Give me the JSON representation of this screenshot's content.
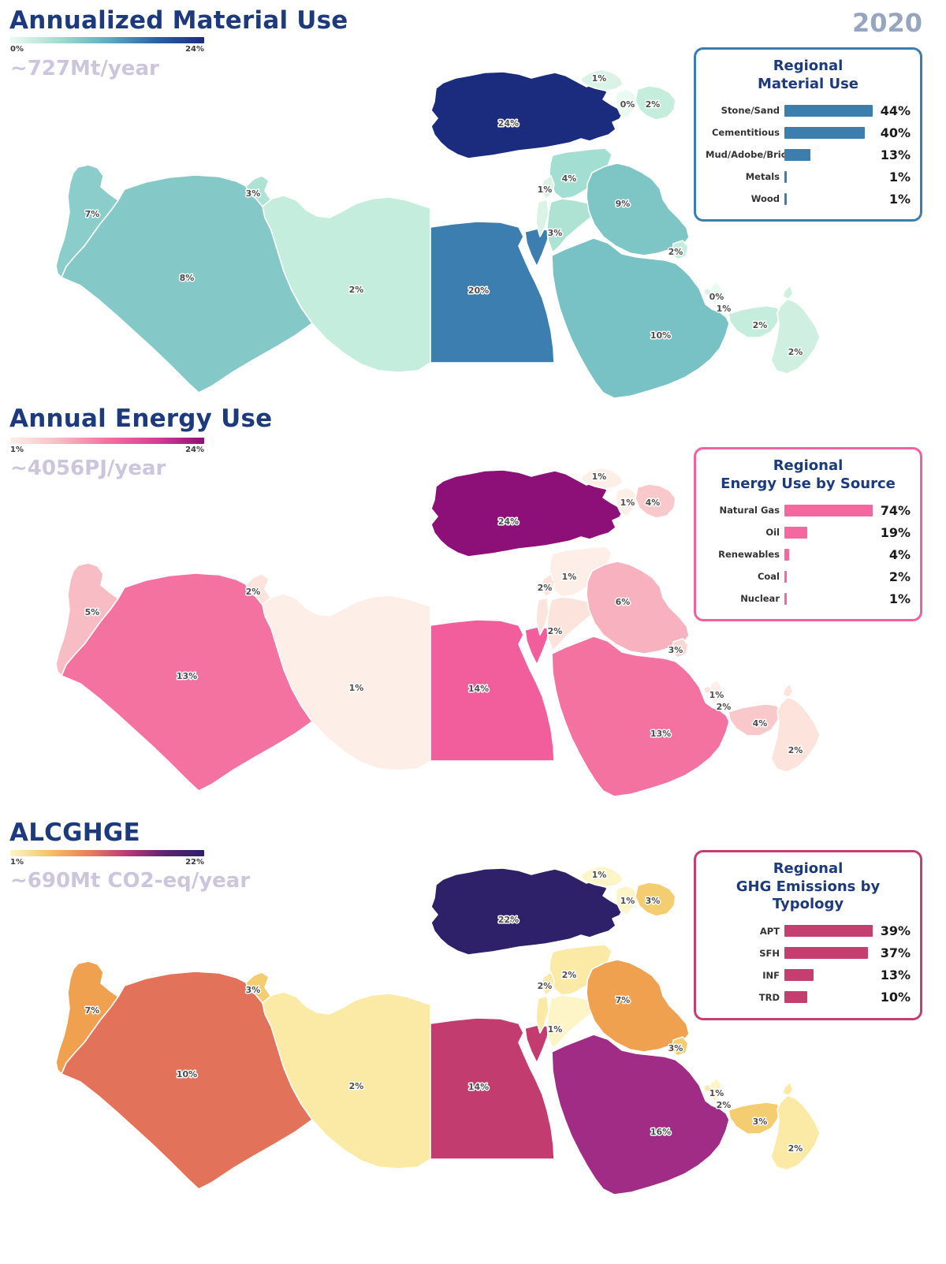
{
  "year": "2020",
  "sections": [
    {
      "title": "Annualized Material Use",
      "subtitle": "~727Mt/year",
      "scale": {
        "min": "0%",
        "max": "24%",
        "gradient": [
          "#ebfaf2",
          "#a5dcd0",
          "#5fadc2",
          "#2d62a3",
          "#1b2c7e"
        ]
      },
      "legend": {
        "title_line1": "Regional",
        "title_line2": "Material Use",
        "border_color": "#3c7eae",
        "bar_color": "#3c7eae",
        "rows": [
          {
            "label": "Stone/Sand",
            "value": "44%",
            "pct": 44
          },
          {
            "label": "Cementitious",
            "value": "40%",
            "pct": 40
          },
          {
            "label": "Mud/Adobe/Brick",
            "value": "13%",
            "pct": 13
          },
          {
            "label": "Metals",
            "value": "1%",
            "pct": 1
          },
          {
            "label": "Wood",
            "value": "1%",
            "pct": 1
          }
        ]
      },
      "map": {
        "countries": [
          {
            "id": "morocco",
            "value": "7%",
            "fill": "#8bcdca"
          },
          {
            "id": "algeria",
            "value": "8%",
            "fill": "#84c8c7"
          },
          {
            "id": "tunisia",
            "value": "3%",
            "fill": "#aee3d4"
          },
          {
            "id": "libya",
            "value": "2%",
            "fill": "#c5eddd"
          },
          {
            "id": "egypt",
            "value": "20%",
            "fill": "#3d7eb0"
          },
          {
            "id": "turkey",
            "value": "24%",
            "fill": "#1b2c7e"
          },
          {
            "id": "georgia",
            "value": "1%",
            "fill": "#d9f3e6"
          },
          {
            "id": "armenia",
            "value": "0%",
            "fill": "#e9faf0"
          },
          {
            "id": "azerbaijan",
            "value": "2%",
            "fill": "#c5eddd"
          },
          {
            "id": "syria",
            "value": "4%",
            "fill": "#a2ded1"
          },
          {
            "id": "lebanon",
            "value": "1%",
            "fill": "#d9f3e6"
          },
          {
            "id": "israel_strip",
            "value": "",
            "fill": "#d9f3e6"
          },
          {
            "id": "jordan",
            "value": "3%",
            "fill": "#aee3d4"
          },
          {
            "id": "iraq",
            "value": "9%",
            "fill": "#7ec5c6"
          },
          {
            "id": "kuwait",
            "value": "2%",
            "fill": "#c5eddd"
          },
          {
            "id": "saudi_arabia",
            "value": "10%",
            "fill": "#78c1c5"
          },
          {
            "id": "qatar",
            "value": "0%",
            "fill": "#e9faf0"
          },
          {
            "id": "bahrain",
            "value": "1%",
            "fill": "#d9f3e6"
          },
          {
            "id": "uae",
            "value": "2%",
            "fill": "#c5eddd"
          },
          {
            "id": "oman",
            "value": "2%",
            "fill": "#cfefe0"
          }
        ]
      }
    },
    {
      "title": "Annual Energy Use",
      "subtitle": "~4056PJ/year",
      "scale": {
        "min": "1%",
        "max": "24%",
        "gradient": [
          "#fdf0e8",
          "#f9bcc5",
          "#f4719f",
          "#d63f96",
          "#8c1078"
        ]
      },
      "legend": {
        "title_line1": "Regional",
        "title_line2": "Energy Use by Source",
        "border_color": "#f0619e",
        "bar_color": "#f4679f",
        "rows": [
          {
            "label": "Natural Gas",
            "value": "74%",
            "pct": 74
          },
          {
            "label": "Oil",
            "value": "19%",
            "pct": 19
          },
          {
            "label": "Renewables",
            "value": "4%",
            "pct": 4
          },
          {
            "label": "Coal",
            "value": "2%",
            "pct": 2
          },
          {
            "label": "Nuclear",
            "value": "1%",
            "pct": 1
          }
        ]
      },
      "map": {
        "countries": [
          {
            "id": "morocco",
            "value": "5%",
            "fill": "#f8bdc4"
          },
          {
            "id": "algeria",
            "value": "13%",
            "fill": "#f4729f"
          },
          {
            "id": "tunisia",
            "value": "2%",
            "fill": "#fce3dc"
          },
          {
            "id": "libya",
            "value": "1%",
            "fill": "#fdefe7"
          },
          {
            "id": "egypt",
            "value": "14%",
            "fill": "#f15e9b"
          },
          {
            "id": "turkey",
            "value": "24%",
            "fill": "#8c1078"
          },
          {
            "id": "georgia",
            "value": "1%",
            "fill": "#fdefe7"
          },
          {
            "id": "armenia",
            "value": "1%",
            "fill": "#fdefe7"
          },
          {
            "id": "azerbaijan",
            "value": "4%",
            "fill": "#f9c8cb"
          },
          {
            "id": "syria",
            "value": "1%",
            "fill": "#fdefe7"
          },
          {
            "id": "lebanon",
            "value": "2%",
            "fill": "#fce3dc"
          },
          {
            "id": "israel_strip",
            "value": "",
            "fill": "#fce3dc"
          },
          {
            "id": "jordan",
            "value": "2%",
            "fill": "#fce3dc"
          },
          {
            "id": "iraq",
            "value": "6%",
            "fill": "#f7b1bf"
          },
          {
            "id": "kuwait",
            "value": "3%",
            "fill": "#fbd5d3"
          },
          {
            "id": "saudi_arabia",
            "value": "13%",
            "fill": "#f4729f"
          },
          {
            "id": "qatar",
            "value": "1%",
            "fill": "#fdefe7"
          },
          {
            "id": "bahrain",
            "value": "2%",
            "fill": "#fce3dc"
          },
          {
            "id": "uae",
            "value": "4%",
            "fill": "#f9c8cb"
          },
          {
            "id": "oman",
            "value": "2%",
            "fill": "#fce3dc"
          }
        ]
      }
    },
    {
      "title": "ALCGHGE",
      "subtitle": "~690Mt CO2-eq/year",
      "scale": {
        "min": "1%",
        "max": "22%",
        "gradient": [
          "#fdf6c9",
          "#f5c268",
          "#e8815a",
          "#b93a77",
          "#5c2471",
          "#2e2069"
        ]
      },
      "legend": {
        "title_line1": "Regional",
        "title_line2": "GHG Emissions by Typology",
        "border_color": "#c43f6f",
        "bar_color": "#c43f6f",
        "rows": [
          {
            "label": "APT",
            "value": "39%",
            "pct": 39
          },
          {
            "label": "SFH",
            "value": "37%",
            "pct": 37
          },
          {
            "label": "INF",
            "value": "13%",
            "pct": 13
          },
          {
            "label": "TRD",
            "value": "10%",
            "pct": 10
          }
        ]
      },
      "map": {
        "countries": [
          {
            "id": "morocco",
            "value": "7%",
            "fill": "#f0a150"
          },
          {
            "id": "algeria",
            "value": "10%",
            "fill": "#e3725b"
          },
          {
            "id": "tunisia",
            "value": "3%",
            "fill": "#f4cd70"
          },
          {
            "id": "libya",
            "value": "2%",
            "fill": "#faeaa6"
          },
          {
            "id": "egypt",
            "value": "14%",
            "fill": "#c23c70"
          },
          {
            "id": "turkey",
            "value": "22%",
            "fill": "#2e2069"
          },
          {
            "id": "georgia",
            "value": "1%",
            "fill": "#fdf5c7"
          },
          {
            "id": "armenia",
            "value": "1%",
            "fill": "#fdf5c7"
          },
          {
            "id": "azerbaijan",
            "value": "3%",
            "fill": "#f4cd70"
          },
          {
            "id": "syria",
            "value": "2%",
            "fill": "#faeaa6"
          },
          {
            "id": "lebanon",
            "value": "2%",
            "fill": "#faeaa6"
          },
          {
            "id": "israel_strip",
            "value": "",
            "fill": "#faeaa6"
          },
          {
            "id": "jordan",
            "value": "1%",
            "fill": "#fdf5c7"
          },
          {
            "id": "iraq",
            "value": "7%",
            "fill": "#f0a150"
          },
          {
            "id": "kuwait",
            "value": "3%",
            "fill": "#f4cd70"
          },
          {
            "id": "saudi_arabia",
            "value": "16%",
            "fill": "#a02c86"
          },
          {
            "id": "qatar",
            "value": "1%",
            "fill": "#fdf5c7"
          },
          {
            "id": "bahrain",
            "value": "2%",
            "fill": "#faeaa6"
          },
          {
            "id": "uae",
            "value": "3%",
            "fill": "#f4cd70"
          },
          {
            "id": "oman",
            "value": "2%",
            "fill": "#faeaa6"
          }
        ]
      }
    }
  ],
  "chart_data": [
    {
      "type": "heatmap",
      "subtype": "choropleth_map",
      "title": "Annualized Material Use",
      "total": "~727Mt/year",
      "year": "2020",
      "colorbar_range": [
        "0%",
        "24%"
      ],
      "country_share_pct": {
        "Turkey": 24,
        "Egypt": 20,
        "Saudi Arabia": 10,
        "Iraq": 9,
        "Algeria": 8,
        "Morocco": 7,
        "Syria": 4,
        "Tunisia": 3,
        "Jordan": 3,
        "Libya": 2,
        "Kuwait": 2,
        "Azerbaijan": 2,
        "United Arab Emirates": 2,
        "Oman": 2,
        "Georgia": 1,
        "Lebanon": 1,
        "Bahrain": 1,
        "Armenia": 0,
        "Qatar": 0
      },
      "breakdown": {
        "type": "bar",
        "orientation": "horizontal",
        "title": "Regional Material Use",
        "categories": [
          "Stone/Sand",
          "Cementitious",
          "Mud/Adobe/Brick",
          "Metals",
          "Wood"
        ],
        "values": [
          44,
          40,
          13,
          1,
          1
        ],
        "unit": "%"
      }
    },
    {
      "type": "heatmap",
      "subtype": "choropleth_map",
      "title": "Annual Energy Use",
      "total": "~4056PJ/year",
      "colorbar_range": [
        "1%",
        "24%"
      ],
      "country_share_pct": {
        "Turkey": 24,
        "Egypt": 14,
        "Algeria": 13,
        "Saudi Arabia": 13,
        "Iraq": 6,
        "Morocco": 5,
        "Azerbaijan": 4,
        "United Arab Emirates": 4,
        "Kuwait": 3,
        "Tunisia": 2,
        "Jordan": 2,
        "Lebanon": 2,
        "Bahrain": 2,
        "Oman": 2,
        "Libya": 1,
        "Syria": 1,
        "Georgia": 1,
        "Armenia": 1,
        "Qatar": 1
      },
      "breakdown": {
        "type": "bar",
        "orientation": "horizontal",
        "title": "Regional Energy Use by Source",
        "categories": [
          "Natural Gas",
          "Oil",
          "Renewables",
          "Coal",
          "Nuclear"
        ],
        "values": [
          74,
          19,
          4,
          2,
          1
        ],
        "unit": "%"
      }
    },
    {
      "type": "heatmap",
      "subtype": "choropleth_map",
      "title": "ALCGHGE",
      "total": "~690Mt CO2-eq/year",
      "colorbar_range": [
        "1%",
        "22%"
      ],
      "country_share_pct": {
        "Turkey": 22,
        "Saudi Arabia": 16,
        "Egypt": 14,
        "Algeria": 10,
        "Morocco": 7,
        "Iraq": 7,
        "Tunisia": 3,
        "Kuwait": 3,
        "Azerbaijan": 3,
        "United Arab Emirates": 3,
        "Libya": 2,
        "Syria": 2,
        "Lebanon": 2,
        "Bahrain": 2,
        "Oman": 2,
        "Jordan": 1,
        "Georgia": 1,
        "Armenia": 1,
        "Qatar": 1
      },
      "breakdown": {
        "type": "bar",
        "orientation": "horizontal",
        "title": "Regional GHG Emissions by Typology",
        "categories": [
          "APT",
          "SFH",
          "INF",
          "TRD"
        ],
        "values": [
          39,
          37,
          13,
          10
        ],
        "unit": "%"
      }
    }
  ]
}
